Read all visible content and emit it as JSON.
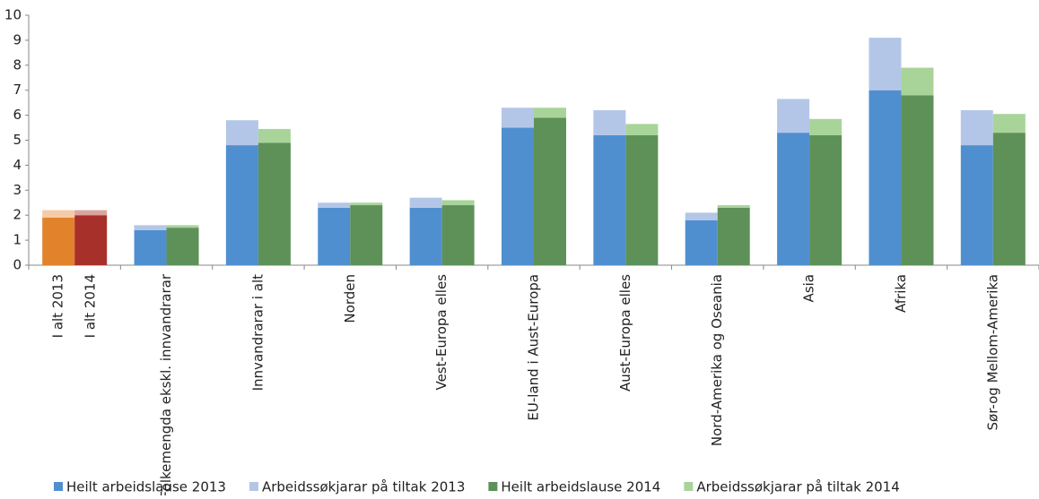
{
  "chart_data": {
    "type": "grouped-stacked-bar",
    "categories": [
      null,
      "Folkemengda  ekskl. innvandrarar",
      "Innvandrarar i alt",
      "Norden",
      "Vest-Europa elles",
      "EU-land i Aust-Europa",
      "Aust-Europa elles",
      "Nord-Amerika og Oseania",
      "Asia",
      "Afrika",
      "Sør-og Mellom-Amerika"
    ],
    "first_group_labels": [
      "I alt 2013",
      "I alt 2014"
    ],
    "first_group_colors": [
      "#e2822b",
      "#f5cba8",
      "#a8302a",
      "#dba59c"
    ],
    "series": [
      {
        "name": "Heilt arbeidslause 2013",
        "color": "#4f8fd0",
        "group": 0,
        "values": [
          1.9,
          1.4,
          4.8,
          2.3,
          2.3,
          5.5,
          5.2,
          1.8,
          5.3,
          7.0,
          4.8
        ]
      },
      {
        "name": "Arbeidssøkjarar på tiltak 2013",
        "color": "#b4c6e7",
        "group": 0,
        "values": [
          0.3,
          0.2,
          1.0,
          0.2,
          0.4,
          0.8,
          1.0,
          0.3,
          1.35,
          2.1,
          1.4
        ]
      },
      {
        "name": "Heilt arbeidslause 2014",
        "color": "#5e9158",
        "group": 1,
        "values": [
          2.0,
          1.5,
          4.9,
          2.4,
          2.4,
          5.9,
          5.2,
          2.3,
          5.2,
          6.8,
          5.3
        ]
      },
      {
        "name": "Arbeidssøkjarar på tiltak 2014",
        "color": "#a8d49a",
        "group": 1,
        "values": [
          0.2,
          0.1,
          0.55,
          0.1,
          0.2,
          0.4,
          0.45,
          0.1,
          0.65,
          1.1,
          0.75
        ]
      }
    ],
    "ylim": [
      0,
      10
    ],
    "yticks": [
      0,
      1,
      2,
      3,
      4,
      5,
      6,
      7,
      8,
      9,
      10
    ],
    "grid": false
  }
}
